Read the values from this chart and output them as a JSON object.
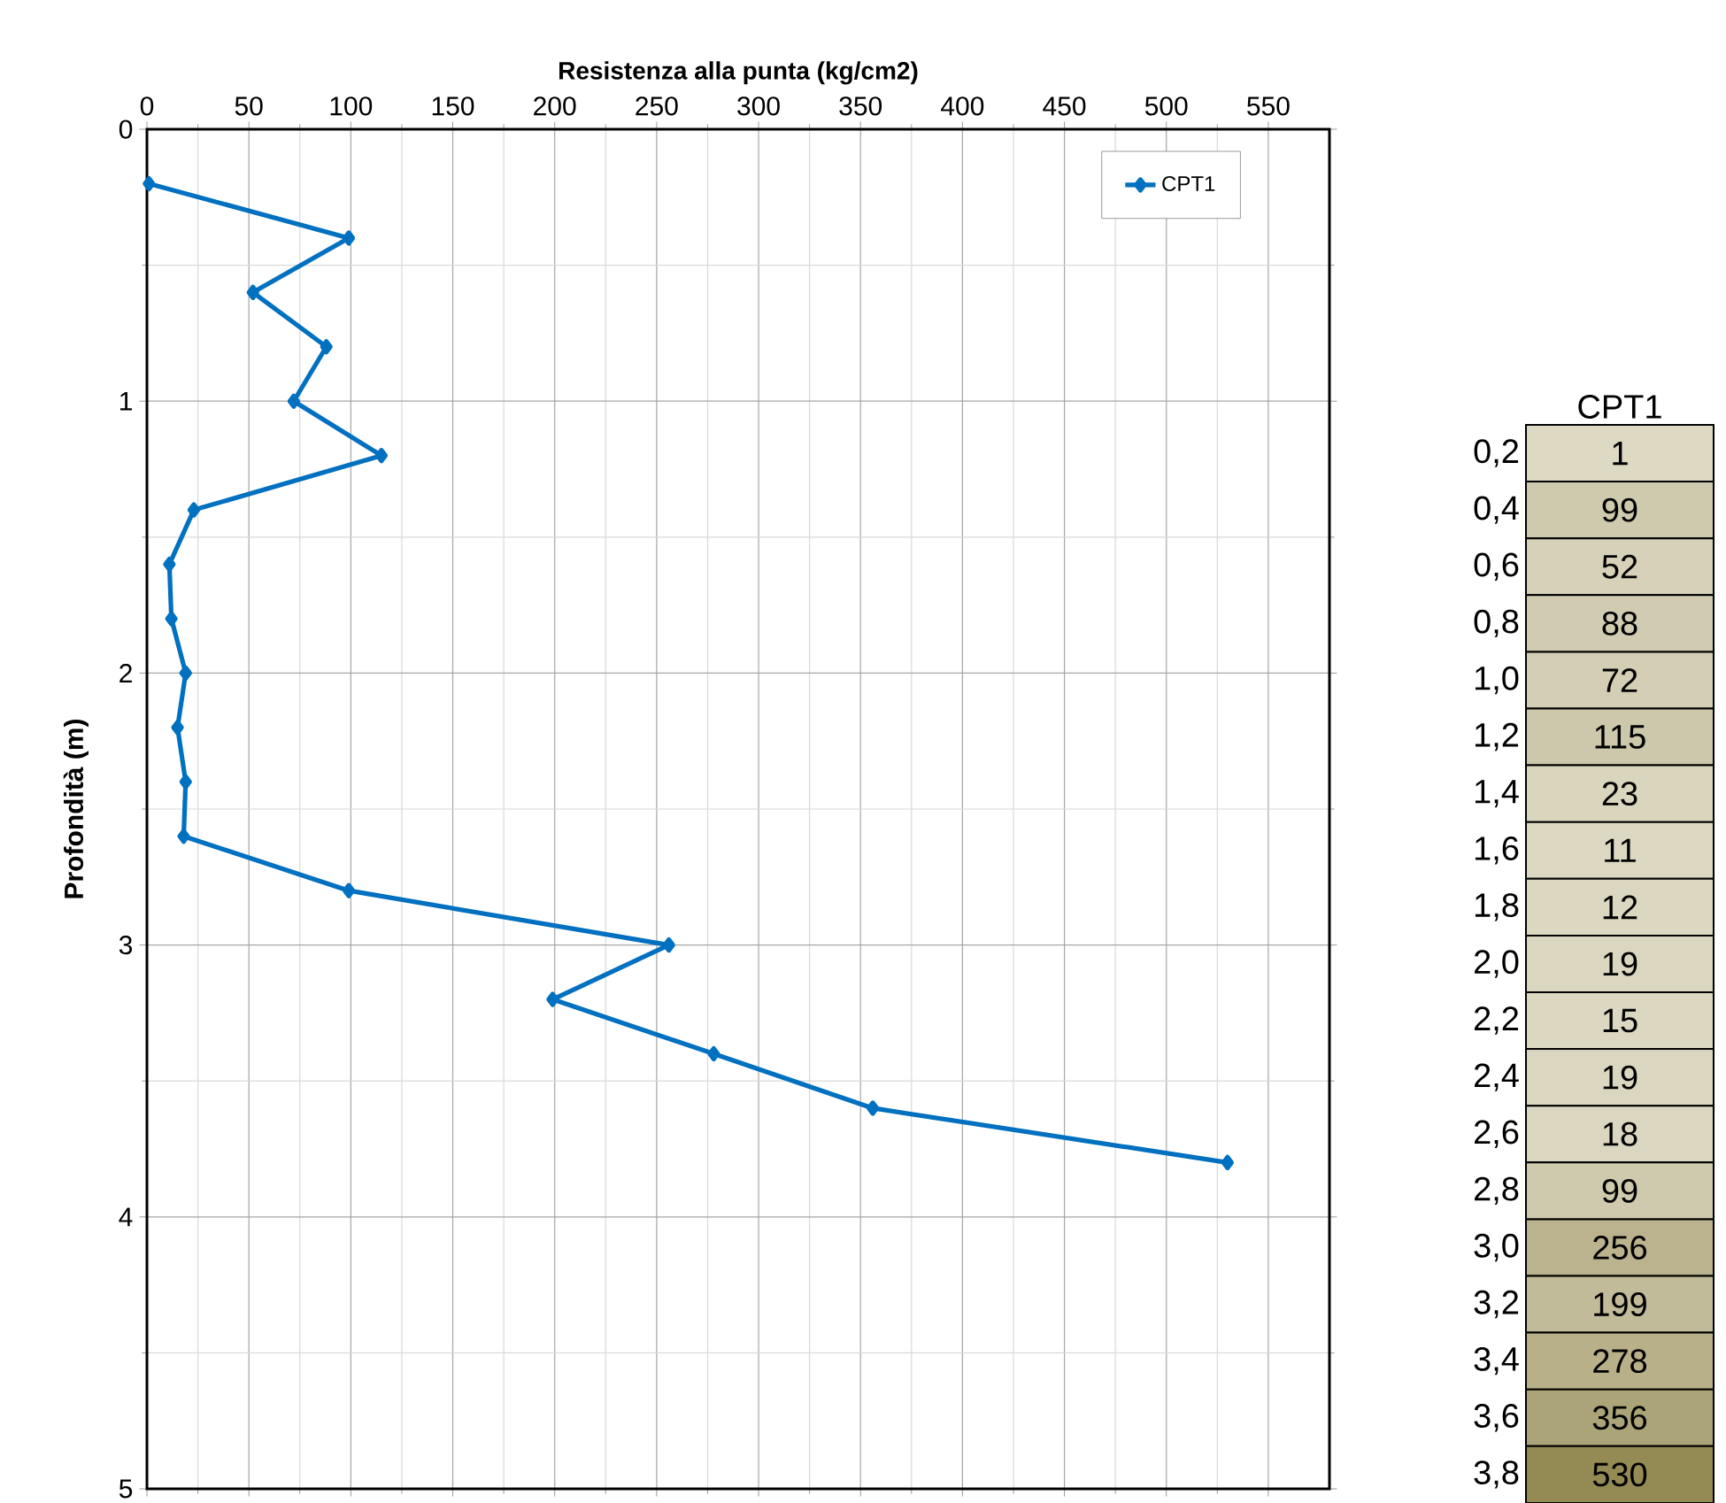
{
  "chart_data": [
    {
      "type": "line",
      "xlabel": "Resistenza alla punta (kg/cm2)",
      "ylabel": "Profondità (m)",
      "xlim": [
        0,
        580
      ],
      "xticks": [
        0,
        50,
        100,
        150,
        200,
        250,
        300,
        350,
        400,
        450,
        500,
        550
      ],
      "ylim": [
        5,
        0
      ],
      "yticks": [
        0,
        1,
        2,
        3,
        4,
        5
      ],
      "grid": true,
      "legend": "top right",
      "marker": "diamond",
      "line_style": "solid",
      "series": [
        {
          "name": "CPT1",
          "color": "#0070c0",
          "x": [
            1,
            99,
            52,
            88,
            72,
            115,
            23,
            11,
            12,
            19,
            15,
            19,
            18,
            99,
            256,
            199,
            278,
            356,
            530
          ],
          "values": [
            0.2,
            0.4,
            0.6,
            0.8,
            1.0,
            1.2,
            1.4,
            1.6,
            1.8,
            2.0,
            2.2,
            2.4,
            2.6,
            2.8,
            3.0,
            3.2,
            3.4,
            3.6,
            3.8
          ]
        }
      ]
    },
    {
      "type": "heatmap",
      "categories": [
        "CPT1"
      ],
      "y_categories": [
        "0,2",
        "0,4",
        "0,6",
        "0,8",
        "1,0",
        "1,2",
        "1,4",
        "1,6",
        "1,8",
        "2,0",
        "2,2",
        "2,4",
        "2,6",
        "2,8",
        "3,0",
        "3,2",
        "3,4",
        "3,6",
        "3,8"
      ],
      "cells": [
        [
          1
        ],
        [
          99
        ],
        [
          52
        ],
        [
          88
        ],
        [
          72
        ],
        [
          115
        ],
        [
          23
        ],
        [
          11
        ],
        [
          12
        ],
        [
          19
        ],
        [
          15
        ],
        [
          19
        ],
        [
          18
        ],
        [
          99
        ],
        [
          256
        ],
        [
          199
        ],
        [
          278
        ],
        [
          356
        ],
        [
          530
        ]
      ],
      "cell_labels": [
        [
          "1"
        ],
        [
          "99"
        ],
        [
          "52"
        ],
        [
          "88"
        ],
        [
          "72"
        ],
        [
          "115"
        ],
        [
          "23"
        ],
        [
          "11"
        ],
        [
          "12"
        ],
        [
          "19"
        ],
        [
          "15"
        ],
        [
          "19"
        ],
        [
          "18"
        ],
        [
          "99"
        ],
        [
          "256"
        ],
        [
          "199"
        ],
        [
          "278"
        ],
        [
          "356"
        ],
        [
          "530"
        ]
      ]
    }
  ]
}
